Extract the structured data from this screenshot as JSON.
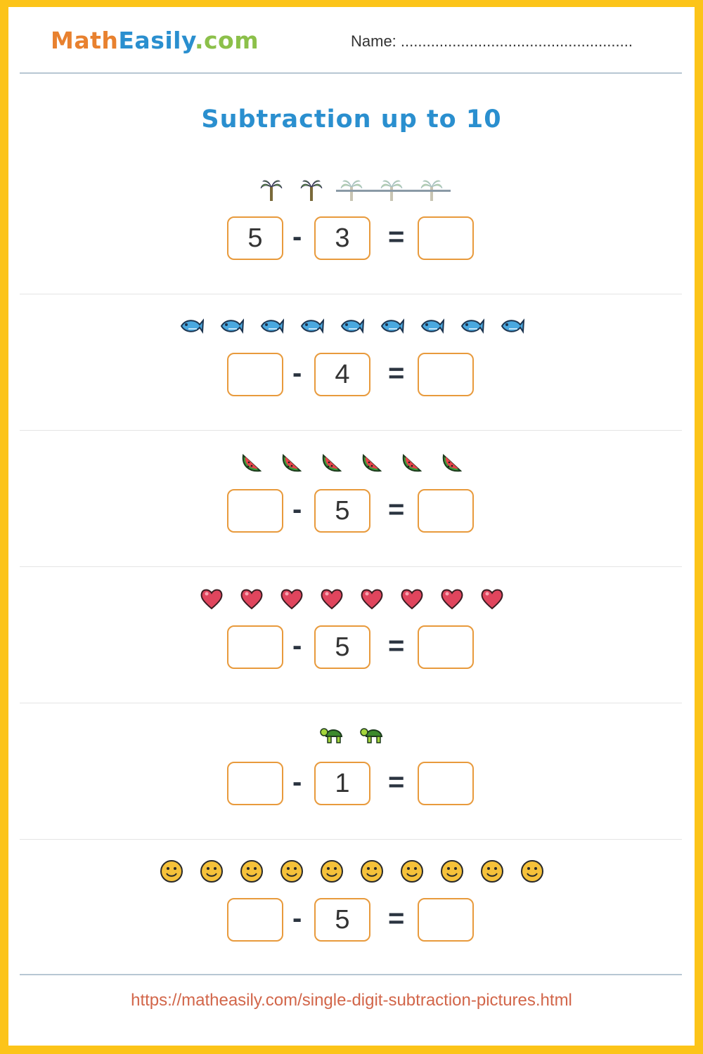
{
  "header": {
    "logo_parts": [
      "Math",
      "Easily",
      ".com"
    ],
    "name_label": "Name: ......................................................"
  },
  "title": "Subtraction up to 10",
  "operators": {
    "minus": "-",
    "equals": "="
  },
  "problems": [
    {
      "icon": "palm-tree",
      "count": 5,
      "crossed": 3,
      "a": "5",
      "b": "3",
      "c": ""
    },
    {
      "icon": "fish",
      "count": 9,
      "crossed": 0,
      "a": "",
      "b": "4",
      "c": ""
    },
    {
      "icon": "watermelon",
      "count": 6,
      "crossed": 0,
      "a": "",
      "b": "5",
      "c": ""
    },
    {
      "icon": "heart",
      "count": 8,
      "crossed": 0,
      "a": "",
      "b": "5",
      "c": ""
    },
    {
      "icon": "turtle",
      "count": 2,
      "crossed": 0,
      "a": "",
      "b": "1",
      "c": ""
    },
    {
      "icon": "smiley",
      "count": 10,
      "crossed": 0,
      "a": "",
      "b": "5",
      "c": ""
    }
  ],
  "footer_url": "https://matheasily.com/single-digit-subtraction-pictures.html",
  "colors": {
    "border": "#fcc419",
    "accent": "#2a8fcf",
    "box": "#e89a3c",
    "url": "#d2664a"
  }
}
